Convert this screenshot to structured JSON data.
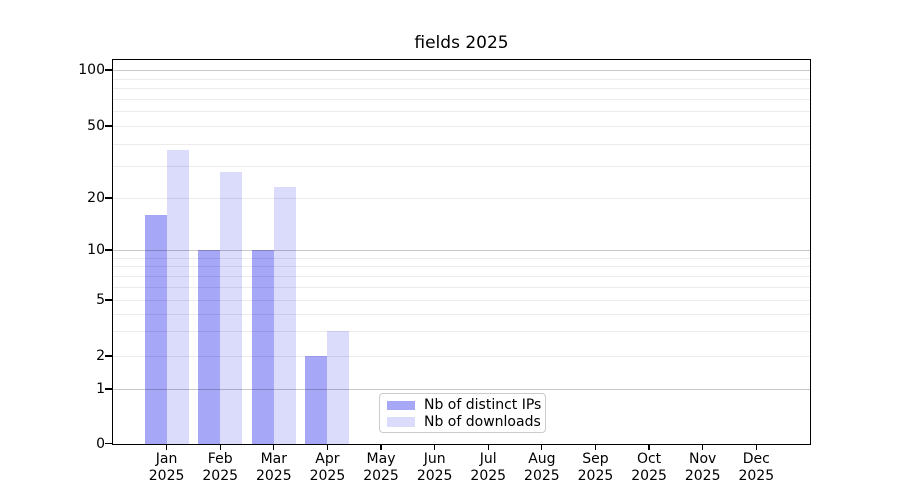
{
  "chart_data": {
    "type": "bar",
    "title": "fields 2025",
    "categories": [
      "Jan",
      "Feb",
      "Mar",
      "Apr",
      "May",
      "Jun",
      "Jul",
      "Aug",
      "Sep",
      "Oct",
      "Nov",
      "Dec"
    ],
    "year_label": "2025",
    "series": [
      {
        "name": "Nb of distinct IPs",
        "color": "rgba(55,55,238,0.44)",
        "values": [
          16,
          10,
          10,
          2,
          0,
          0,
          0,
          0,
          0,
          0,
          0,
          0
        ]
      },
      {
        "name": "Nb of downloads",
        "color": "rgba(55,55,238,0.18)",
        "values": [
          37,
          28,
          23,
          3,
          0,
          0,
          0,
          0,
          0,
          0,
          0,
          0
        ]
      }
    ],
    "xlabel": "",
    "ylabel": "",
    "yaxis": {
      "scale": "symlog",
      "tick_labels": [
        0,
        1,
        2,
        5,
        10,
        20,
        50,
        100
      ],
      "major_grid_values": [
        1,
        10,
        100
      ],
      "minor_grid_values": [
        2,
        3,
        4,
        5,
        6,
        7,
        8,
        9,
        20,
        30,
        40,
        50,
        60,
        70,
        80,
        90
      ],
      "range": [
        0,
        114
      ]
    },
    "grid": true,
    "legend_position": "lower-center-inside",
    "colors": {
      "background": "#ffffff",
      "spine": "#000000",
      "major_grid": "#c9c9c9",
      "minor_grid": "#eaeaea",
      "text": "#000000"
    }
  }
}
